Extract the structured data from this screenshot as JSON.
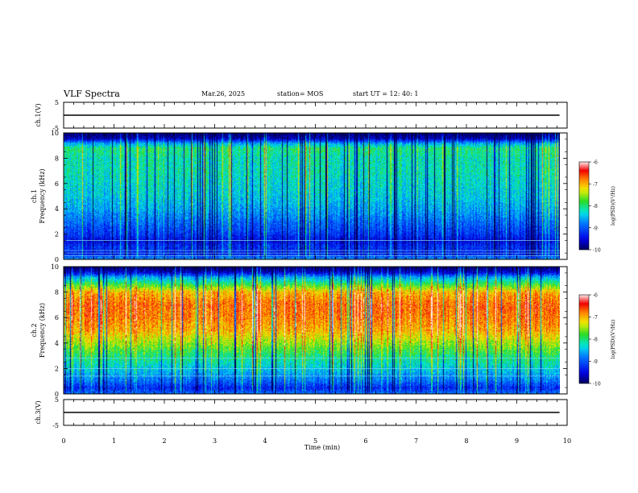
{
  "header": {
    "title": "VLF Spectra",
    "date": "Mar.26, 2025",
    "station": "station= MOS",
    "start": "start  UT =   12: 40: 1"
  },
  "chart_data": [
    {
      "type": "line",
      "panel": "ch1-waveform",
      "ylabel": "ch.1(V)",
      "yticks": [
        "5",
        "-5"
      ],
      "ylim": [
        -5,
        5
      ],
      "xlim": [
        0,
        10
      ],
      "series": [
        {
          "x": [
            0,
            9.85
          ],
          "values": [
            0,
            0
          ]
        }
      ]
    },
    {
      "type": "heatmap",
      "panel": "ch1-spectrogram",
      "ylabel": "ch.1\nFrequency (kHz)",
      "yticks": [
        "0",
        "2",
        "4",
        "6",
        "8",
        "10"
      ],
      "ylim": [
        0,
        10
      ],
      "xlim": [
        0,
        10
      ],
      "data_end_min": 9.85,
      "colorbar": {
        "label": "log(PSD)(V²/Hz)",
        "ticks": [
          "-6",
          "-7",
          "-8",
          "-9",
          "-10"
        ],
        "range": [
          -10,
          -6
        ]
      },
      "freq_profile_kHz": [
        0,
        0.5,
        1,
        1.5,
        2,
        3,
        4,
        5,
        6,
        7,
        8,
        8.8,
        9.2,
        9.6,
        10
      ],
      "freq_profile_log_psd": [
        -8.6,
        -9.4,
        -9.2,
        -9.5,
        -9.2,
        -8.9,
        -8.6,
        -8.4,
        -8.3,
        -8.2,
        -8.2,
        -8.0,
        -8.6,
        -9.7,
        -10.0
      ],
      "lines_kHz": [
        0.3,
        0.5,
        0.7,
        1.5
      ]
    },
    {
      "type": "heatmap",
      "panel": "ch2-spectrogram",
      "ylabel": "ch.2\nFrequency (kHz)",
      "yticks": [
        "0",
        "2",
        "4",
        "6",
        "8",
        "10"
      ],
      "ylim": [
        0,
        10
      ],
      "xlim": [
        0,
        10
      ],
      "data_end_min": 9.85,
      "colorbar": {
        "label": "log(PSD)(V²/Hz)",
        "ticks": [
          "-6",
          "-7",
          "-8",
          "-9",
          "-10"
        ],
        "range": [
          -10,
          -6
        ]
      },
      "freq_profile_kHz": [
        0,
        0.5,
        1,
        2,
        3,
        4,
        5,
        6,
        7,
        8,
        8.6,
        9.2,
        9.6,
        10
      ],
      "freq_profile_log_psd": [
        -8.8,
        -9.3,
        -8.9,
        -8.4,
        -8.0,
        -7.5,
        -7.0,
        -6.8,
        -6.7,
        -7.0,
        -7.8,
        -8.6,
        -9.6,
        -10.0
      ],
      "lines_kHz": [
        1.4,
        2.0,
        2.8
      ]
    },
    {
      "type": "line",
      "panel": "ch3-waveform",
      "ylabel": "ch.3(V)",
      "yticks": [
        "5",
        "-5"
      ],
      "ylim": [
        -5,
        5
      ],
      "xlim": [
        0,
        10
      ],
      "xlabel": "Time  (min)",
      "xticks": [
        "0",
        "1",
        "2",
        "3",
        "4",
        "5",
        "6",
        "7",
        "8",
        "9",
        "10"
      ],
      "series": [
        {
          "x": [
            0,
            9.85
          ],
          "values": [
            0,
            0
          ]
        }
      ]
    }
  ]
}
